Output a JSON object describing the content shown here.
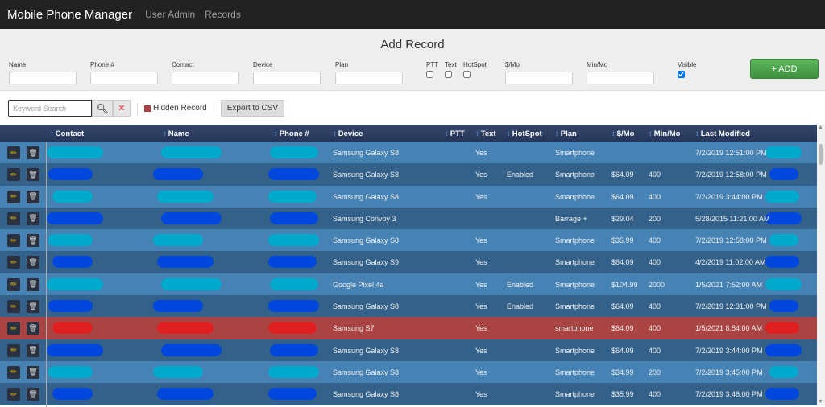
{
  "nav": {
    "brand": "Mobile Phone Manager",
    "links": [
      "User Admin",
      "Records"
    ]
  },
  "add_record": {
    "title": "Add Record",
    "fields": [
      "Name",
      "Phone #",
      "Contact",
      "Device",
      "Plan"
    ],
    "checkboxes": [
      {
        "label": "PTT",
        "checked": false
      },
      {
        "label": "Text",
        "checked": false
      },
      {
        "label": "HotSpot",
        "checked": false
      }
    ],
    "fields2": [
      "$/Mo",
      "Min/Mo"
    ],
    "visible_label": "Visible",
    "visible_checked": true,
    "add_label": "+ ADD"
  },
  "toolbar": {
    "search_placeholder": "Keyword Search",
    "search_icon": "magnifier",
    "clear_icon": "x",
    "hidden_label": "Hidden Record",
    "hidden_color": "#a94442",
    "export_label": "Export to CSV"
  },
  "columns": [
    "Contact",
    "Name",
    "Phone #",
    "Device",
    "PTT",
    "Text",
    "HotSpot",
    "Plan",
    "$/Mo",
    "Min/Mo",
    "Last Modified"
  ],
  "rows": [
    {
      "device": "Samsung Galaxy S8",
      "ptt": "",
      "text": "Yes",
      "hotspot": "",
      "plan": "Smartphone",
      "price": "",
      "min": "",
      "modified": "7/2/2019 12:51:00 PM",
      "hidden": false
    },
    {
      "device": "Samsung Galaxy S8",
      "ptt": "",
      "text": "Yes",
      "hotspot": "Enabled",
      "plan": "Smartphone",
      "price": "$64.09",
      "min": "400",
      "modified": "7/2/2019 12:58:00 PM",
      "hidden": false
    },
    {
      "device": "Samsung Galaxy S8",
      "ptt": "",
      "text": "Yes",
      "hotspot": "",
      "plan": "Smartphone",
      "price": "$64.09",
      "min": "400",
      "modified": "7/2/2019 3:44:00 PM",
      "hidden": false
    },
    {
      "device": "Samsung Convoy 3",
      "ptt": "",
      "text": "",
      "hotspot": "",
      "plan": "Barrage +",
      "price": "$29.04",
      "min": "200",
      "modified": "5/28/2015 11:21:00 AM",
      "hidden": false
    },
    {
      "device": "Samsung Galaxy S8",
      "ptt": "",
      "text": "Yes",
      "hotspot": "",
      "plan": "Smartphone",
      "price": "$35.99",
      "min": "400",
      "modified": "7/2/2019 12:58:00 PM",
      "hidden": false
    },
    {
      "device": "Samsung Galaxy S9",
      "ptt": "",
      "text": "Yes",
      "hotspot": "",
      "plan": "Smartphone",
      "price": "$64.09",
      "min": "400",
      "modified": "4/2/2019 11:02:00 AM",
      "hidden": false
    },
    {
      "device": "Google Pixel 4a",
      "ptt": "",
      "text": "Yes",
      "hotspot": "Enabled",
      "plan": "Smartphone",
      "price": "$104.99",
      "min": "2000",
      "modified": "1/5/2021 7:52:00 AM",
      "hidden": false
    },
    {
      "device": "Samsung Galaxy S8",
      "ptt": "",
      "text": "Yes",
      "hotspot": "Enabled",
      "plan": "Smartphone",
      "price": "$64.09",
      "min": "400",
      "modified": "7/2/2019 12:31:00 PM",
      "hidden": false
    },
    {
      "device": "Samsung S7",
      "ptt": "",
      "text": "Yes",
      "hotspot": "",
      "plan": "smartphone",
      "price": "$64.09",
      "min": "400",
      "modified": "1/5/2021 8:54:00 AM",
      "hidden": true
    },
    {
      "device": "Samsung Galaxy S8",
      "ptt": "",
      "text": "Yes",
      "hotspot": "",
      "plan": "Smartphone",
      "price": "$64.09",
      "min": "400",
      "modified": "7/2/2019 3:44:00 PM",
      "hidden": false
    },
    {
      "device": "Samsung Galaxy S8",
      "ptt": "",
      "text": "Yes",
      "hotspot": "",
      "plan": "Smartphone",
      "price": "$34.99",
      "min": "200",
      "modified": "7/2/2019 3:45:00 PM",
      "hidden": false
    },
    {
      "device": "Samsung Galaxy S8",
      "ptt": "",
      "text": "Yes",
      "hotspot": "",
      "plan": "Smartphone",
      "price": "$35.99",
      "min": "400",
      "modified": "7/2/2019 3:46:00 PM",
      "hidden": false
    }
  ],
  "colors": {
    "row_light": "#4682b4",
    "row_dark": "#336189",
    "row_hidden": "#a94442",
    "header": "#2c3e60",
    "redact_light": "#00aacc",
    "redact_dark": "#0047dd",
    "redact_hidden": "#e02020"
  }
}
